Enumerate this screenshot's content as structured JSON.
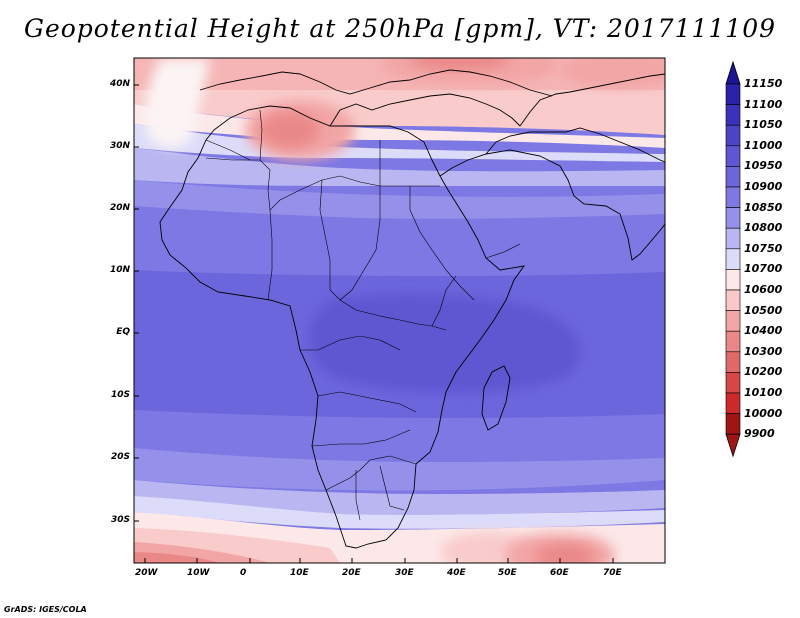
{
  "title": "Geopotential Height at 250hPa [gpm], VT: 2017111109",
  "credit": "GrADS: IGES/COLA",
  "lat_labels": [
    "40N",
    "30N",
    "20N",
    "10N",
    "EQ",
    "10S",
    "20S",
    "30S"
  ],
  "lon_labels": [
    "20W",
    "10W",
    "0",
    "10E",
    "20E",
    "30E",
    "40E",
    "50E",
    "60E",
    "70E"
  ],
  "colorbar": {
    "levels": [
      11150,
      11100,
      11050,
      11000,
      10950,
      10900,
      10850,
      10800,
      10750,
      10700,
      10600,
      10500,
      10400,
      10300,
      10200,
      10100,
      10000,
      9900
    ],
    "level_labels": [
      "11150",
      "11100",
      "11050",
      "11000",
      "10950",
      "10900",
      "10850",
      "10800",
      "10750",
      "10700",
      "10600",
      "10500",
      "10400",
      "10300",
      "10200",
      "10100",
      "10000",
      "9900"
    ],
    "colors": [
      "#1a1496",
      "#2a22aa",
      "#3a32bc",
      "#4d45c8",
      "#5e56d2",
      "#6c66dc",
      "#7d78e4",
      "#9591ea",
      "#b9b6f1",
      "#dcdcfa",
      "#fce8e8",
      "#f9c8c8",
      "#f2a5a5",
      "#ea8888",
      "#e06a6a",
      "#d84646",
      "#cc2a2a",
      "#a01414"
    ],
    "cap_top_color": "#1a1496",
    "cap_bottom_color": "#a01414"
  },
  "map_data": {
    "lon_range": [
      -22,
      80
    ],
    "lat_range": [
      -37,
      45
    ],
    "field": "geopotential height 250hPa",
    "units": "gpm"
  }
}
